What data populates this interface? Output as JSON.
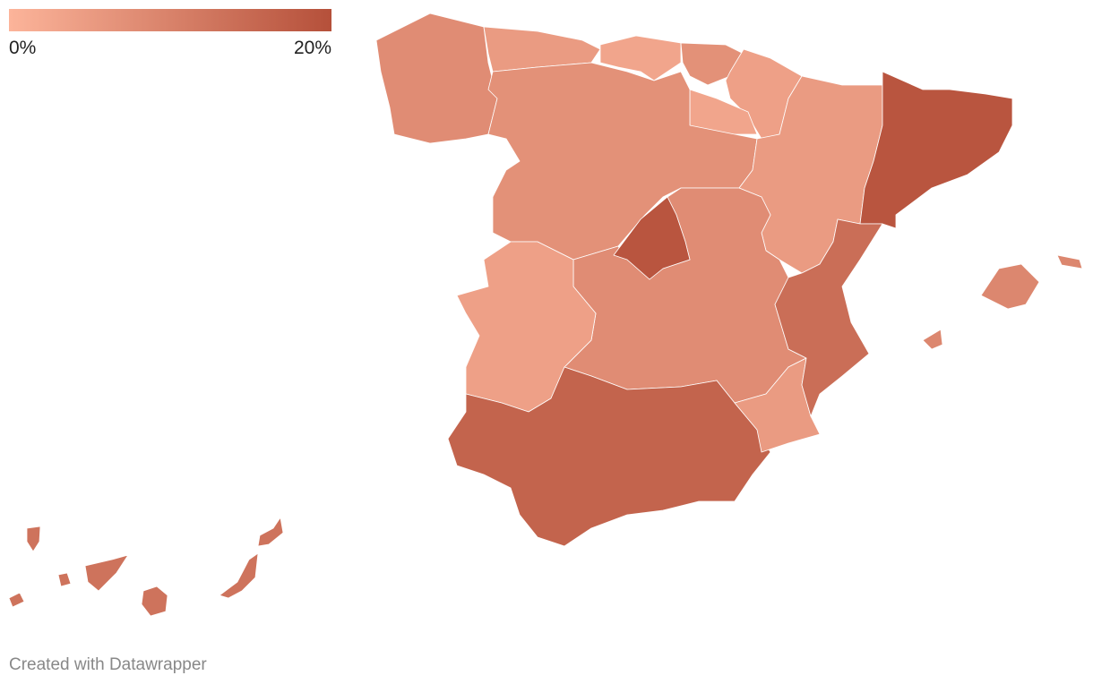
{
  "map": {
    "legend": {
      "colors": [
        "#fcb49a",
        "#b5503a"
      ],
      "lim": [
        0,
        20
      ],
      "ticks": [
        {
          "value": 0,
          "label": "0%"
        },
        {
          "value": 20,
          "label": "20%"
        }
      ]
    },
    "regions": {
      "values": [
        8,
        5,
        3,
        7,
        4,
        3,
        7,
        5,
        19,
        19,
        8,
        4,
        16,
        5,
        14,
        9,
        13
      ]
    },
    "footer": "Created with Datawrapper"
  }
}
